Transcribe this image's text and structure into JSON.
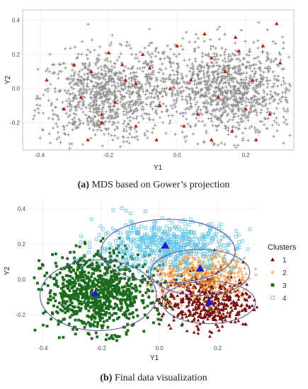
{
  "chart_data": [
    {
      "type": "scatter",
      "title": "",
      "xlabel": "Y1",
      "ylabel": "Y2",
      "xlim": [
        -0.45,
        0.34
      ],
      "ylim": [
        -0.36,
        0.46
      ],
      "x_ticks": [
        -0.4,
        -0.2,
        0.0,
        0.2
      ],
      "y_ticks": [
        -0.2,
        0.0,
        0.2,
        0.4
      ],
      "x_tick_labels": [
        "-0.4",
        "-0.2",
        "0.0",
        "0.2"
      ],
      "y_tick_labels": [
        "-0.2",
        "0.0",
        "0.2",
        "0.4"
      ],
      "grid": true,
      "legend": "none",
      "series": [
        {
          "marker": "plus",
          "color": "#8c8c8c",
          "clusters": [
            {
              "cx": -0.22,
              "cy": -0.05,
              "sx": 0.09,
              "sy": 0.13,
              "n": 800
            },
            {
              "cx": 0.16,
              "cy": -0.02,
              "sx": 0.09,
              "sy": 0.14,
              "n": 900
            },
            {
              "cx": -0.02,
              "cy": 0.05,
              "sx": 0.12,
              "sy": 0.12,
              "n": 300
            }
          ]
        },
        {
          "marker": "triangle",
          "color": "#b22200",
          "points": [
            [
              -0.38,
              0.05
            ],
            [
              -0.3,
              0.14
            ],
            [
              -0.28,
              -0.05
            ],
            [
              -0.25,
              0.1
            ],
            [
              -0.22,
              -0.2
            ],
            [
              -0.2,
              0.21
            ],
            [
              -0.18,
              -0.08
            ],
            [
              -0.15,
              0.05
            ],
            [
              -0.12,
              -0.22
            ],
            [
              -0.1,
              0.2
            ],
            [
              -0.08,
              0.12
            ],
            [
              -0.05,
              -0.1
            ],
            [
              -0.02,
              0.0
            ],
            [
              0.0,
              0.25
            ],
            [
              0.04,
              0.05
            ],
            [
              0.06,
              -0.15
            ],
            [
              0.08,
              0.32
            ],
            [
              0.1,
              0.18
            ],
            [
              0.12,
              -0.05
            ],
            [
              0.14,
              0.1
            ],
            [
              0.16,
              -0.25
            ],
            [
              0.18,
              0.22
            ],
            [
              0.2,
              -0.12
            ],
            [
              0.22,
              0.05
            ],
            [
              0.25,
              0.25
            ],
            [
              0.27,
              -0.15
            ],
            [
              0.29,
              0.38
            ],
            [
              -0.33,
              -0.12
            ],
            [
              -0.26,
              -0.3
            ],
            [
              -0.16,
              0.14
            ],
            [
              -0.06,
              -0.3
            ],
            [
              0.02,
              -0.22
            ],
            [
              0.1,
              -0.3
            ],
            [
              0.23,
              -0.3
            ],
            [
              0.3,
              0.15
            ],
            [
              -0.12,
              0.03
            ],
            [
              0.17,
              0.3
            ],
            [
              -0.22,
              -0.15
            ]
          ]
        }
      ]
    },
    {
      "type": "scatter",
      "title": "",
      "xlabel": "Y1",
      "ylabel": "Y2",
      "xlim": [
        -0.45,
        0.34
      ],
      "ylim": [
        -0.36,
        0.46
      ],
      "x_ticks": [
        -0.4,
        -0.2,
        0.0,
        0.2
      ],
      "y_ticks": [
        -0.2,
        0.0,
        0.2,
        0.4
      ],
      "x_tick_labels": [
        "-0.4",
        "-0.2",
        "0.0",
        "0.2"
      ],
      "y_tick_labels": [
        "-0.2",
        "0.0",
        "0.2",
        "0.4"
      ],
      "grid": true,
      "legend": "right",
      "legend_title": "Clusters",
      "series": [
        {
          "name": "1",
          "marker": "triangle",
          "color": "#7a0e0a",
          "cx": 0.16,
          "cy": -0.12,
          "sx": 0.08,
          "sy": 0.08,
          "n": 500,
          "center": [
            0.17,
            -0.13
          ]
        },
        {
          "name": "2",
          "marker": "plus",
          "color": "#f29a3f",
          "cx": 0.14,
          "cy": 0.03,
          "sx": 0.09,
          "sy": 0.07,
          "n": 500,
          "center": [
            0.14,
            0.06
          ]
        },
        {
          "name": "3",
          "marker": "square",
          "color": "#1d6b1d",
          "cx": -0.21,
          "cy": -0.07,
          "sx": 0.09,
          "sy": 0.11,
          "n": 900,
          "center": [
            -0.22,
            -0.08
          ]
        },
        {
          "name": "4",
          "marker": "open-square",
          "color": "#5ec3ea",
          "cx": 0.02,
          "cy": 0.19,
          "sx": 0.12,
          "sy": 0.07,
          "n": 550,
          "center": [
            0.02,
            0.19
          ]
        }
      ],
      "ellipses": [
        {
          "cx": 0.03,
          "cy": 0.16,
          "rx": 0.23,
          "ry": 0.18
        },
        {
          "cx": 0.14,
          "cy": 0.04,
          "rx": 0.17,
          "ry": 0.13
        },
        {
          "cx": -0.21,
          "cy": -0.09,
          "rx": 0.2,
          "ry": 0.2
        },
        {
          "cx": 0.17,
          "cy": -0.13,
          "rx": 0.16,
          "ry": 0.12
        }
      ]
    }
  ],
  "captions": {
    "a_label": "(a)",
    "a_text": " MDS based on Gower’s projection",
    "b_label": "(b)",
    "b_text": " Final data visualization"
  },
  "colors": {
    "panel_border": "#b3b3b3",
    "grid": "#ebebeb",
    "ellipse": "#5a5aa0",
    "center_marker": "#1e1ec8"
  }
}
